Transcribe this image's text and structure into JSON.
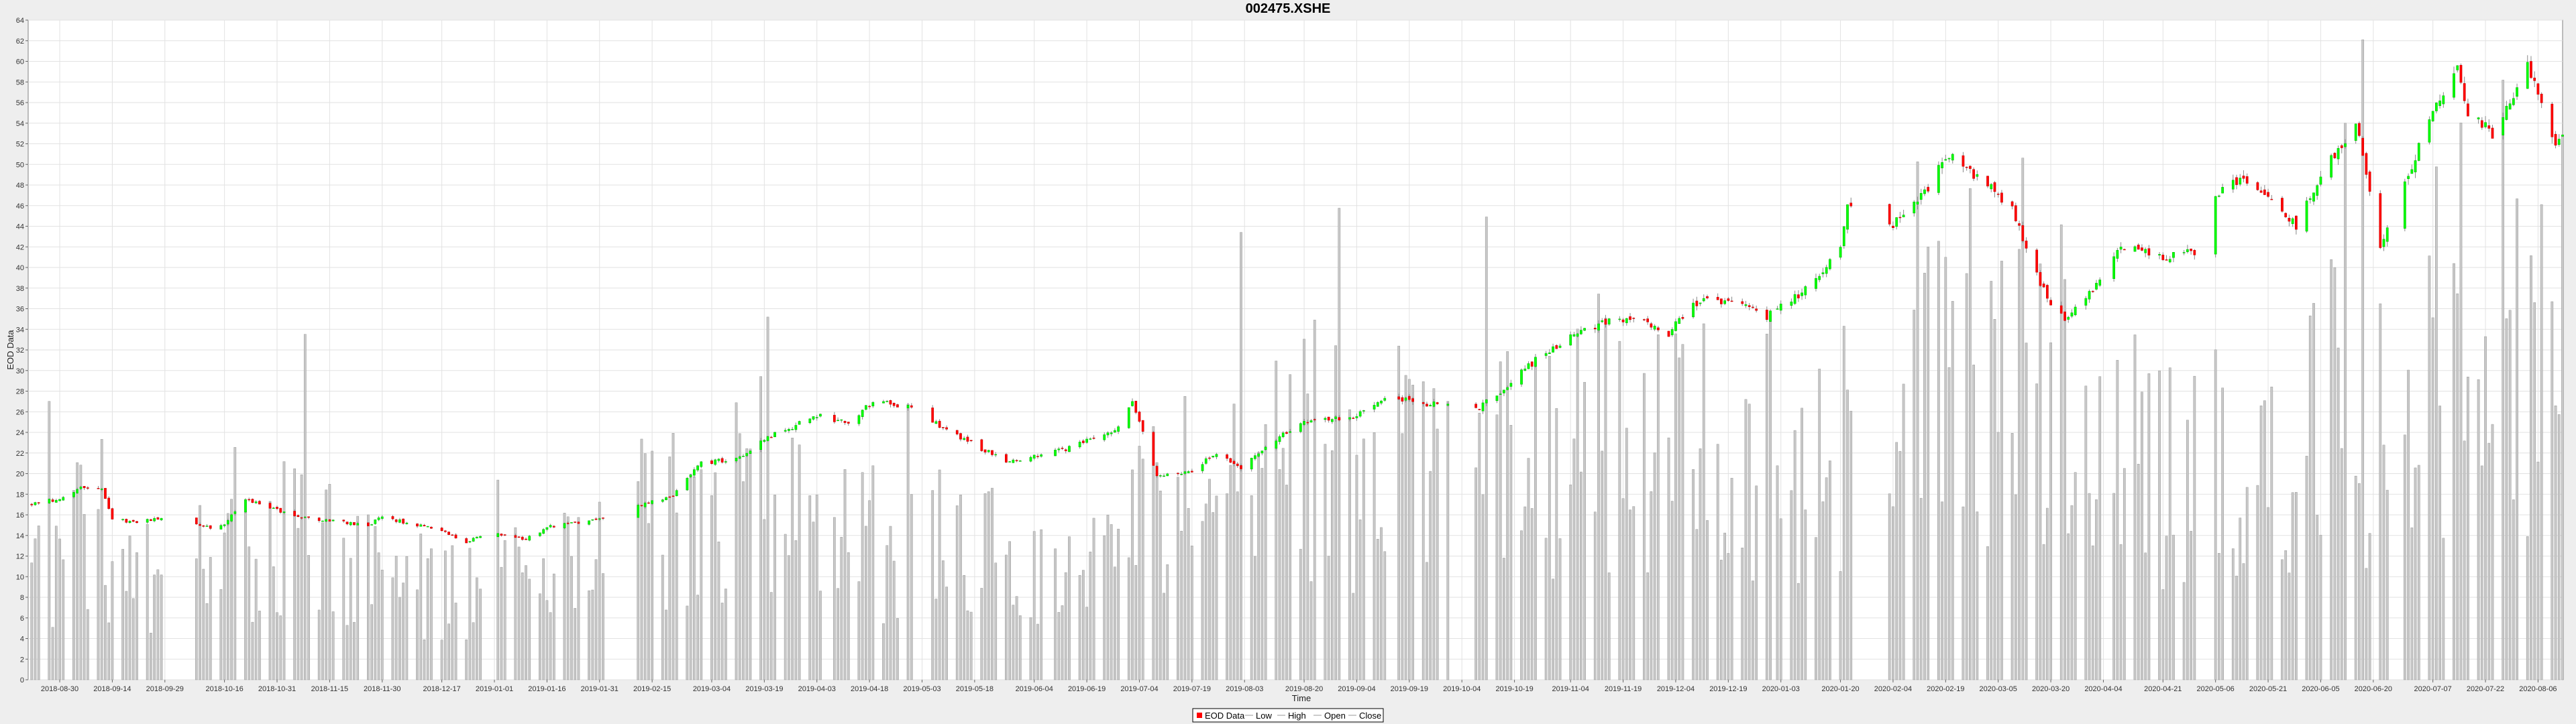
{
  "chart_data": {
    "type": "candlestick",
    "title": "002475.XSHE",
    "xlabel": "Time",
    "ylabel": "EOD Data",
    "ylim": [
      0,
      64
    ],
    "yticks": [
      0,
      2,
      4,
      6,
      8,
      10,
      12,
      14,
      16,
      18,
      20,
      22,
      24,
      26,
      28,
      30,
      32,
      34,
      36,
      38,
      40,
      42,
      44,
      46,
      48,
      50,
      52,
      54,
      56,
      58,
      60,
      62,
      64
    ],
    "xlim": [
      "2018-08-21",
      "2020-08-13"
    ],
    "xticks": [
      "2018-08-30",
      "2018-09-14",
      "2018-09-29",
      "2018-10-16",
      "2018-10-31",
      "2018-11-15",
      "2018-11-30",
      "2018-12-17",
      "2019-01-01",
      "2019-01-16",
      "2019-01-31",
      "2019-02-15",
      "2019-03-04",
      "2019-03-19",
      "2019-04-03",
      "2019-04-18",
      "2019-05-03",
      "2019-05-18",
      "2019-06-04",
      "2019-06-19",
      "2019-07-04",
      "2019-07-19",
      "2019-08-03",
      "2019-08-20",
      "2019-09-04",
      "2019-09-19",
      "2019-10-04",
      "2019-10-19",
      "2019-11-04",
      "2019-11-19",
      "2019-12-04",
      "2019-12-19",
      "2020-01-03",
      "2020-01-20",
      "2020-02-04",
      "2020-02-19",
      "2020-03-05",
      "2020-03-20",
      "2020-04-04",
      "2020-04-21",
      "2020-05-06",
      "2020-05-21",
      "2020-06-05",
      "2020-06-20",
      "2020-07-07",
      "2020-07-22",
      "2020-08-06"
    ],
    "grid": true,
    "legend": {
      "placement": "bottom-center",
      "entries": [
        "EOD Data",
        "Low",
        "High",
        "Open",
        "Close"
      ]
    },
    "colors": {
      "up": "#00ff00",
      "down": "#ff0000",
      "volume": "#c8c8c8",
      "volume_edge": "#999999",
      "wick": "#888888",
      "plot_bg": "#ffffff",
      "grid": "#e2e2e2"
    },
    "price_anchors": [
      [
        "2018-08-22",
        17.0
      ],
      [
        "2018-08-30",
        17.6
      ],
      [
        "2018-09-06",
        18.8
      ],
      [
        "2018-09-11",
        18.4
      ],
      [
        "2018-09-14",
        15.6
      ],
      [
        "2018-09-20",
        15.3
      ],
      [
        "2018-09-28",
        15.6
      ],
      [
        "2018-10-12",
        14.8
      ],
      [
        "2018-10-16",
        15.0
      ],
      [
        "2018-10-22",
        17.6
      ],
      [
        "2018-10-31",
        16.5
      ],
      [
        "2018-11-06",
        15.8
      ],
      [
        "2018-11-15",
        15.4
      ],
      [
        "2018-11-26",
        15.0
      ],
      [
        "2018-11-30",
        15.8
      ],
      [
        "2018-12-10",
        15.0
      ],
      [
        "2018-12-17",
        14.5
      ],
      [
        "2018-12-24",
        13.4
      ],
      [
        "2018-12-31",
        14.2
      ],
      [
        "2019-01-10",
        13.6
      ],
      [
        "2019-01-16",
        14.8
      ],
      [
        "2019-01-31",
        15.6
      ],
      [
        "2019-02-12",
        17.0
      ],
      [
        "2019-02-20",
        17.6
      ],
      [
        "2019-03-01",
        21.0
      ],
      [
        "2019-03-11",
        21.4
      ],
      [
        "2019-03-20",
        23.5
      ],
      [
        "2019-04-03",
        25.6
      ],
      [
        "2019-04-12",
        25.0
      ],
      [
        "2019-04-19",
        27.0
      ],
      [
        "2019-04-30",
        26.4
      ],
      [
        "2019-05-08",
        24.6
      ],
      [
        "2019-05-20",
        22.4
      ],
      [
        "2019-05-27",
        21.2
      ],
      [
        "2019-06-04",
        21.6
      ],
      [
        "2019-06-14",
        22.5
      ],
      [
        "2019-06-24",
        23.8
      ],
      [
        "2019-06-28",
        24.5
      ],
      [
        "2019-07-02",
        27.0
      ],
      [
        "2019-07-09",
        19.7
      ],
      [
        "2019-07-19",
        20.3
      ],
      [
        "2019-07-26",
        22.0
      ],
      [
        "2019-08-02",
        20.4
      ],
      [
        "2019-08-12",
        23.4
      ],
      [
        "2019-08-22",
        25.2
      ],
      [
        "2019-09-02",
        25.4
      ],
      [
        "2019-09-13",
        27.5
      ],
      [
        "2019-09-24",
        26.8
      ],
      [
        "2019-10-08",
        26.2
      ],
      [
        "2019-10-15",
        28.0
      ],
      [
        "2019-10-25",
        31.0
      ],
      [
        "2019-11-05",
        33.6
      ],
      [
        "2019-11-14",
        34.7
      ],
      [
        "2019-11-25",
        34.8
      ],
      [
        "2019-12-02",
        33.6
      ],
      [
        "2019-12-09",
        36.6
      ],
      [
        "2019-12-20",
        36.8
      ],
      [
        "2019-12-30",
        35.2
      ],
      [
        "2020-01-10",
        37.8
      ],
      [
        "2020-01-20",
        42.0
      ],
      [
        "2020-01-22",
        46.0
      ],
      [
        "2020-02-03",
        43.8
      ],
      [
        "2020-02-12",
        46.8
      ],
      [
        "2020-02-20",
        51.0
      ],
      [
        "2020-03-02",
        48.0
      ],
      [
        "2020-03-09",
        45.5
      ],
      [
        "2020-03-20",
        36.0
      ],
      [
        "2020-03-25",
        35.0
      ],
      [
        "2020-04-01",
        38.0
      ],
      [
        "2020-04-09",
        42.0
      ],
      [
        "2020-04-20",
        41.0
      ],
      [
        "2020-04-30",
        41.5
      ],
      [
        "2020-05-06",
        47.0
      ],
      [
        "2020-05-13",
        48.5
      ],
      [
        "2020-05-21",
        46.5
      ],
      [
        "2020-05-29",
        44.0
      ],
      [
        "2020-06-05",
        49.0
      ],
      [
        "2020-06-15",
        54.0
      ],
      [
        "2020-06-22",
        42.0
      ],
      [
        "2020-06-30",
        49.0
      ],
      [
        "2020-07-07",
        55.0
      ],
      [
        "2020-07-14",
        59.0
      ],
      [
        "2020-07-17",
        55.0
      ],
      [
        "2020-07-24",
        53.0
      ],
      [
        "2020-08-03",
        59.5
      ],
      [
        "2020-08-11",
        52.0
      ],
      [
        "2020-08-13",
        53.0
      ]
    ],
    "volume_anchors": [
      [
        "2018-08-22",
        12
      ],
      [
        "2018-09-06",
        16
      ],
      [
        "2018-09-20",
        12
      ],
      [
        "2018-10-16",
        13
      ],
      [
        "2018-11-06",
        16
      ],
      [
        "2018-12-03",
        11
      ],
      [
        "2018-12-24",
        9
      ],
      [
        "2019-01-16",
        12
      ],
      [
        "2019-02-12",
        17
      ],
      [
        "2019-03-04",
        21
      ],
      [
        "2019-04-03",
        16
      ],
      [
        "2019-05-08",
        15
      ],
      [
        "2019-06-04",
        12
      ],
      [
        "2019-07-02",
        18
      ],
      [
        "2019-07-26",
        22
      ],
      [
        "2019-08-22",
        24
      ],
      [
        "2019-09-13",
        23
      ],
      [
        "2019-10-15",
        25
      ],
      [
        "2019-11-14",
        27
      ],
      [
        "2019-12-09",
        26
      ],
      [
        "2020-01-10",
        25
      ],
      [
        "2020-02-06",
        30
      ],
      [
        "2020-02-20",
        34
      ],
      [
        "2020-03-09",
        38
      ],
      [
        "2020-03-25",
        31
      ],
      [
        "2020-04-20",
        22
      ],
      [
        "2020-05-13",
        26
      ],
      [
        "2020-06-15",
        30
      ],
      [
        "2020-07-07",
        36
      ],
      [
        "2020-07-17",
        45
      ],
      [
        "2020-08-13",
        30
      ]
    ]
  }
}
